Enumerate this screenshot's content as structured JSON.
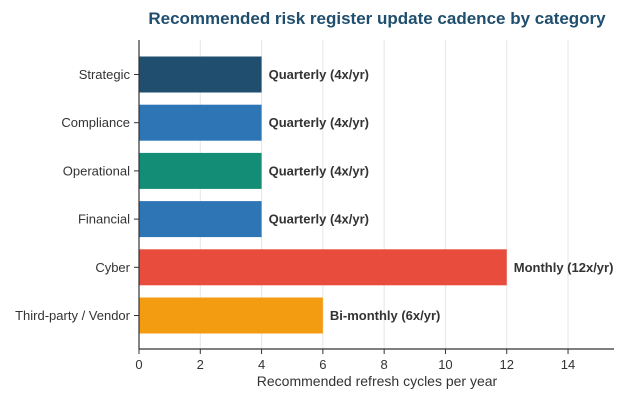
{
  "chart_data": {
    "type": "bar",
    "orientation": "horizontal",
    "title": "Recommended risk register update cadence by category",
    "xlabel": "Recommended refresh cycles per year",
    "ylabel": "",
    "xlim": [
      0,
      15.5
    ],
    "xticks": [
      0,
      2,
      4,
      6,
      8,
      10,
      12,
      14
    ],
    "grid": "vertical",
    "categories": [
      "Strategic",
      "Compliance",
      "Operational",
      "Financial",
      "Cyber",
      "Third-party / Vendor"
    ],
    "values": [
      4,
      4,
      4,
      4,
      12,
      6
    ],
    "data_labels": [
      "Quarterly (4x/yr)",
      "Quarterly (4x/yr)",
      "Quarterly (4x/yr)",
      "Quarterly (4x/yr)",
      "Monthly (12x/yr)",
      "Bi-monthly (6x/yr)"
    ],
    "colors": [
      "#1f4e6e",
      "#2e75b6",
      "#138d75",
      "#2e75b6",
      "#e74c3c",
      "#f39c12"
    ]
  }
}
